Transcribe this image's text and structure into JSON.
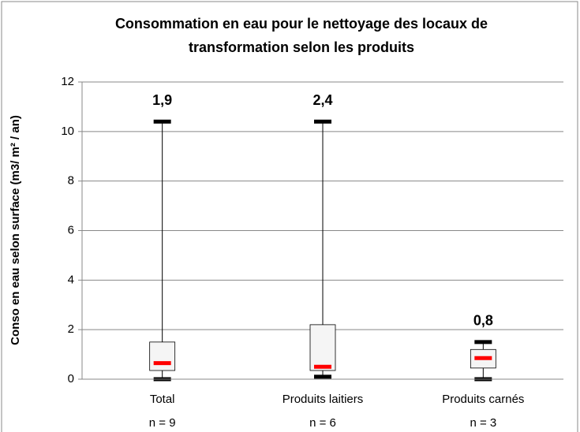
{
  "chart_data": {
    "type": "box",
    "title": [
      "Consommation  en eau pour le nettoyage des locaux de",
      "transformation selon les produits"
    ],
    "y_label": "Conso en eau selon surface (m3/ m² / an)",
    "categories": [
      "Total",
      "Produits laitiers",
      "Produits carnés"
    ],
    "sample_sizes": [
      "n = 9",
      "n = 6",
      "n = 3"
    ],
    "annotations": [
      "1,9",
      "2,4",
      "0,8"
    ],
    "min": [
      0,
      0.1,
      0
    ],
    "q1": [
      0.35,
      0.35,
      0.45
    ],
    "median": [
      0.65,
      0.5,
      0.85
    ],
    "q3": [
      1.5,
      2.2,
      1.2
    ],
    "max": [
      10.4,
      10.4,
      1.5
    ],
    "box_color": "#f5f5f5",
    "median_color": "#ff0000",
    "whisker_color": "#000000",
    "ylim": [
      0,
      12
    ],
    "yticks": [
      0,
      2,
      4,
      6,
      8,
      10,
      12
    ],
    "grid": true
  }
}
